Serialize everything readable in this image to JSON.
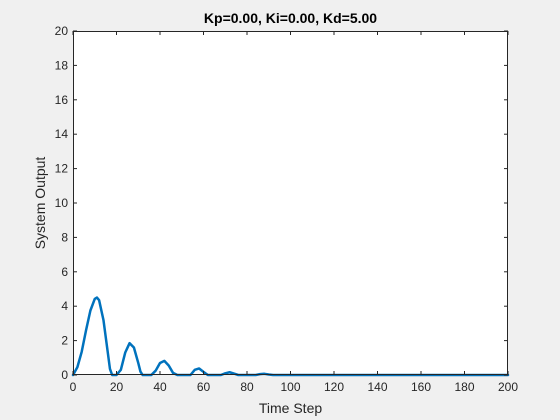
{
  "colors": {
    "figure_bg": "#f0f0f0",
    "axes_bg": "#ffffff",
    "axis": "#262626",
    "line": "#0072bd"
  },
  "chart_data": {
    "type": "line",
    "title": "Kp=0.00, Ki=0.00, Kd=5.00",
    "xlabel": "Time Step",
    "ylabel": "System Output",
    "xlim": [
      0,
      200
    ],
    "ylim": [
      0,
      20
    ],
    "xticks": [
      "0",
      "20",
      "40",
      "60",
      "80",
      "100",
      "120",
      "140",
      "160",
      "180",
      "200"
    ],
    "yticks": [
      "0",
      "2",
      "4",
      "6",
      "8",
      "10",
      "12",
      "14",
      "16",
      "18",
      "20"
    ],
    "grid": false,
    "series": [
      {
        "color": "#0072bd",
        "x": [
          0,
          2,
          4,
          6,
          8,
          10,
          11,
          12,
          14,
          16,
          17,
          18,
          19,
          20,
          22,
          24,
          26,
          28,
          30,
          31,
          32,
          34,
          36,
          38,
          40,
          42,
          44,
          46,
          48,
          50,
          52,
          54,
          56,
          58,
          60,
          62,
          64,
          66,
          68,
          70,
          72,
          74,
          76,
          78,
          80,
          82,
          84,
          86,
          88,
          90,
          92,
          94,
          96,
          98,
          100,
          104,
          108,
          112,
          116,
          120,
          124,
          128,
          132,
          136,
          140,
          150,
          160,
          170,
          180,
          190,
          200
        ],
        "y": [
          0,
          0.45,
          1.35,
          2.6,
          3.75,
          4.42,
          4.5,
          4.35,
          3.2,
          1.3,
          0.35,
          0,
          0,
          0,
          0.3,
          1.3,
          1.85,
          1.6,
          0.7,
          0.2,
          0,
          0,
          0,
          0.25,
          0.7,
          0.82,
          0.55,
          0.12,
          0,
          0,
          0,
          0,
          0.3,
          0.38,
          0.18,
          0,
          0,
          0,
          0,
          0.1,
          0.16,
          0.08,
          0,
          0,
          0,
          0,
          0,
          0.05,
          0.07,
          0.03,
          0,
          0,
          0,
          0,
          0,
          0,
          0,
          0,
          0,
          0,
          0,
          0,
          0,
          0,
          0,
          0,
          0,
          0,
          0,
          0,
          0
        ]
      }
    ]
  }
}
